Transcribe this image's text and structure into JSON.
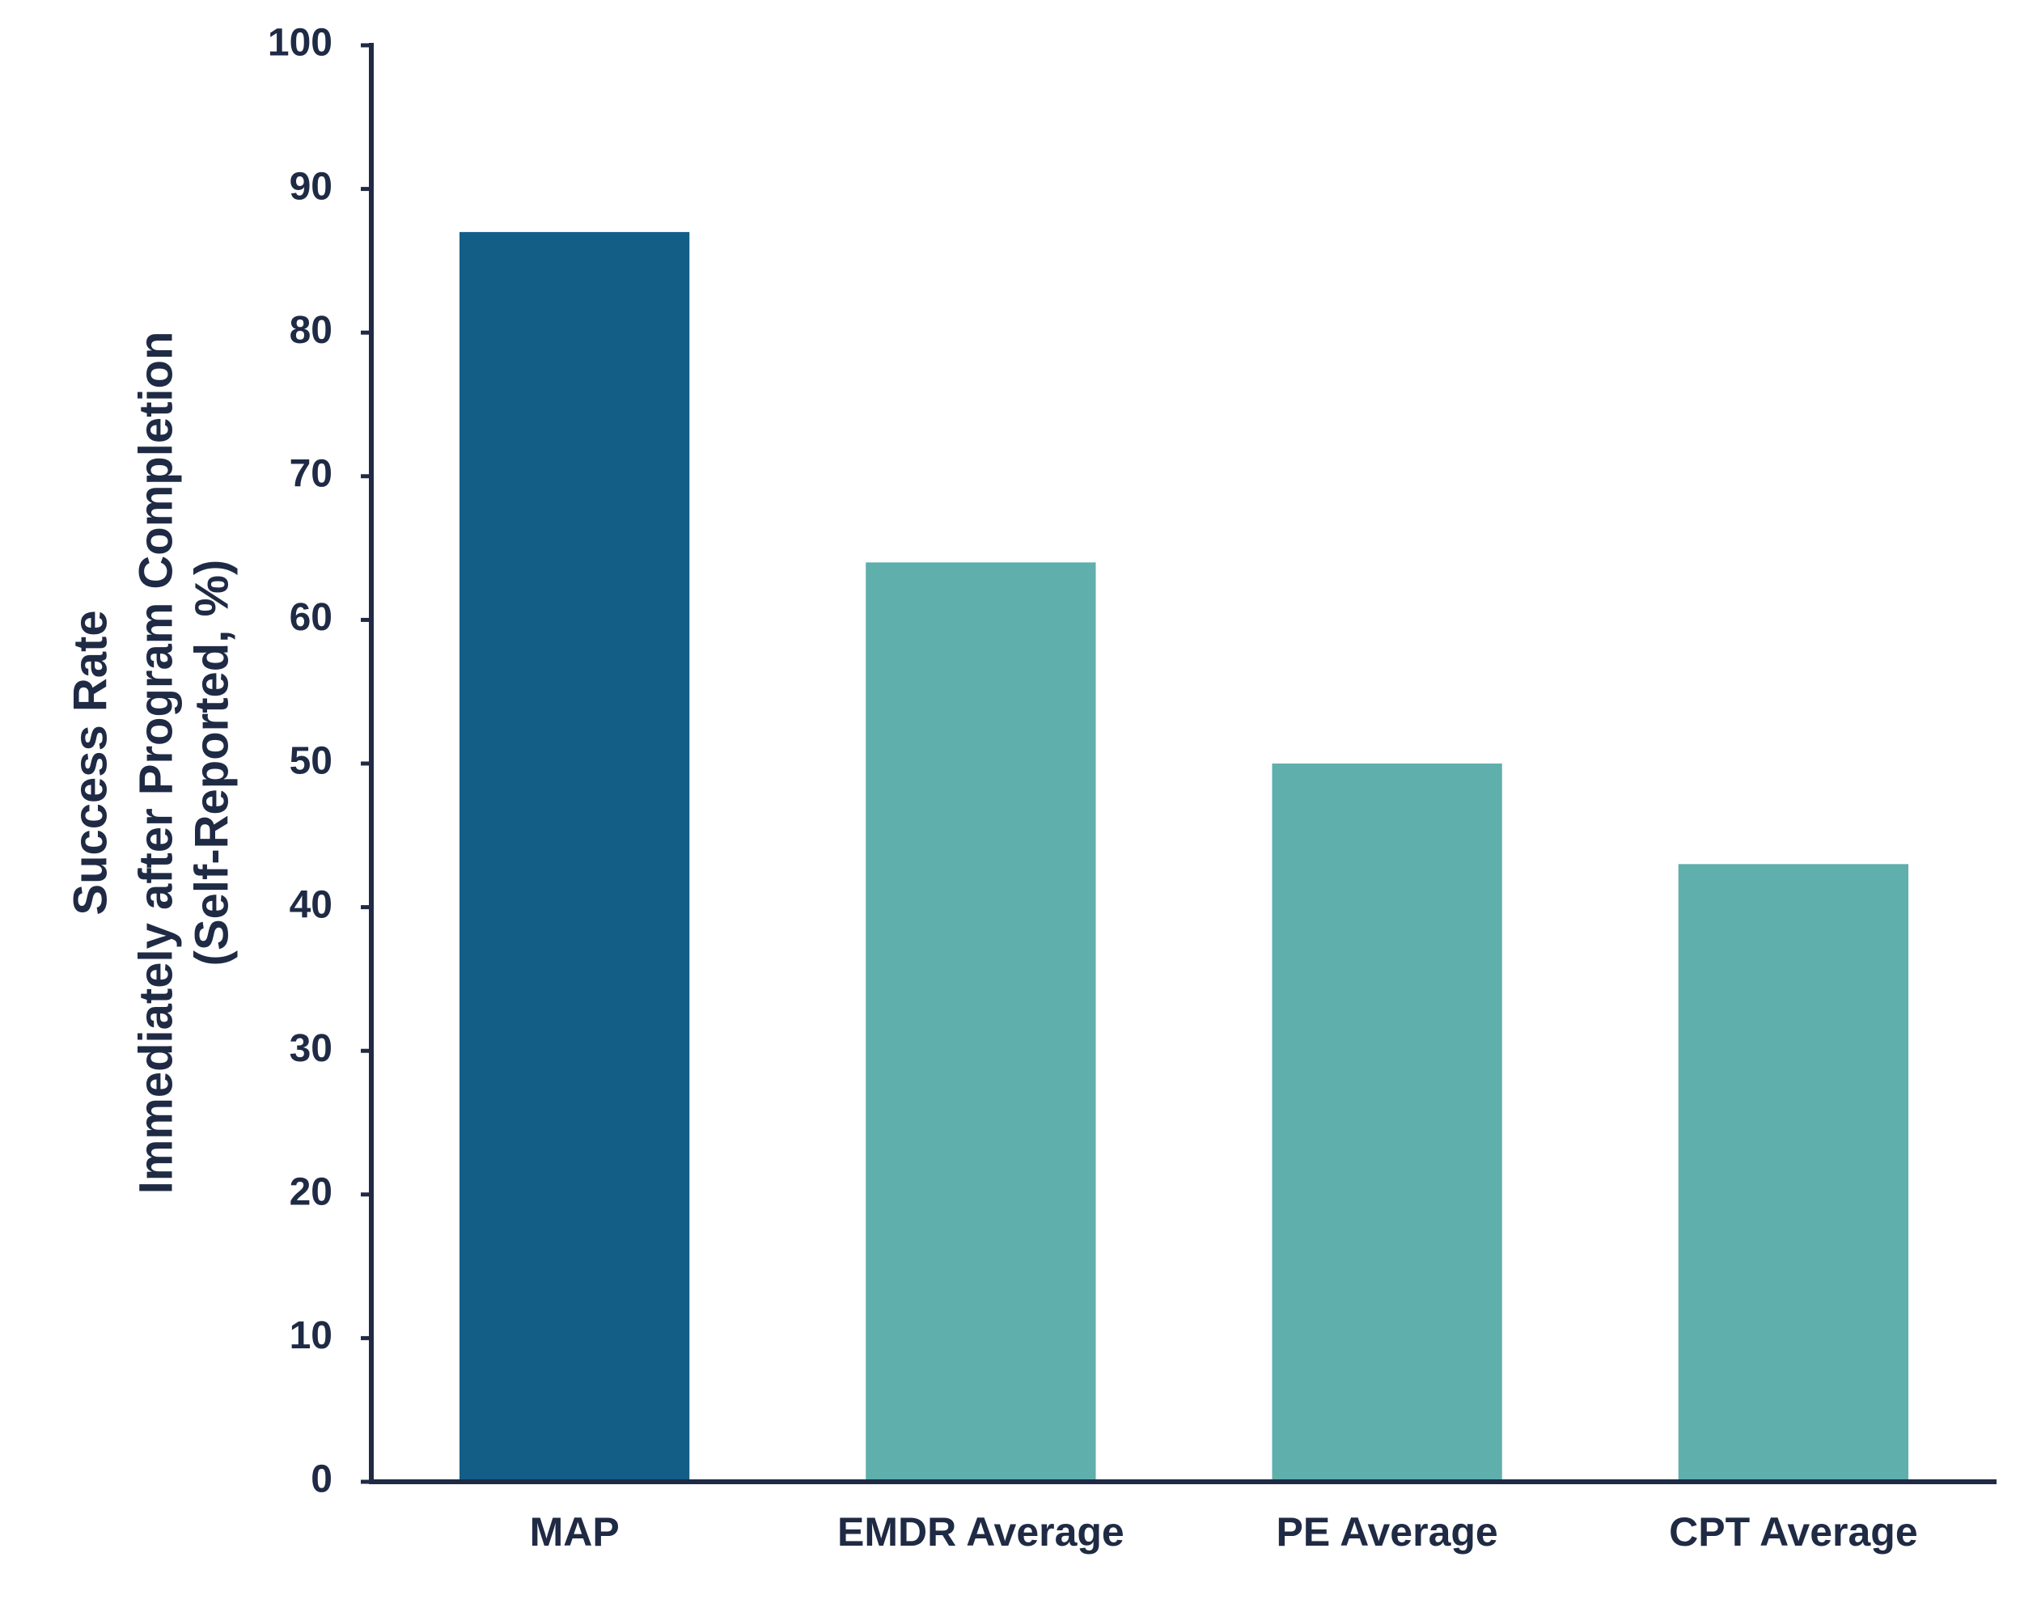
{
  "chart_data": {
    "type": "bar",
    "ylabel": [
      "Success Rate",
      "Immediately after Program Completion",
      "(Self-Reported, %)"
    ],
    "categories": [
      "MAP",
      "EMDR Average",
      "PE Average",
      "CPT Average"
    ],
    "values": [
      87,
      64,
      50,
      43
    ],
    "colors": [
      "#125e87",
      "#5fafac",
      "#5fafac",
      "#5fafac"
    ],
    "ylim": [
      0,
      100
    ],
    "yticks": [
      0,
      10,
      20,
      30,
      40,
      50,
      60,
      70,
      80,
      90,
      100
    ],
    "grid": false
  }
}
